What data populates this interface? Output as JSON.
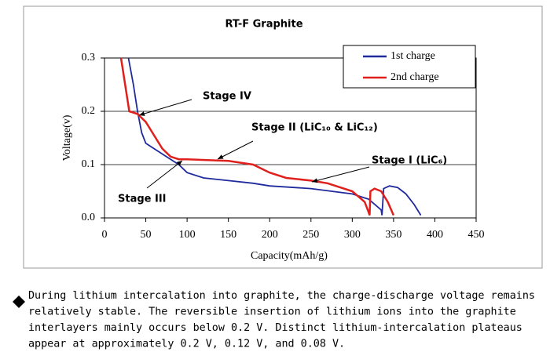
{
  "chart_data": {
    "type": "line",
    "title": "RT-F Graphite",
    "xlabel": "Capacity(mAh/g)",
    "ylabel": "Voltage(v)",
    "xlim": [
      0,
      450
    ],
    "xticks": [
      0,
      50,
      100,
      150,
      200,
      250,
      300,
      350,
      400,
      450
    ],
    "ylim": [
      0,
      0.3
    ],
    "yticks": [
      {
        "value": 0,
        "label": "0.0"
      },
      0.1,
      0.2,
      0.3
    ],
    "grid": true,
    "legend": "upper right",
    "series": [
      {
        "name": "1st charge",
        "color": "#1f2a9c",
        "x": [
          29,
          35,
          40,
          45,
          50,
          60,
          80,
          90,
          100,
          120,
          150,
          180,
          200,
          250,
          300,
          320,
          335,
          336,
          338,
          345,
          355,
          365,
          375,
          383
        ],
        "values": [
          0.3,
          0.25,
          0.2,
          0.16,
          0.14,
          0.13,
          0.11,
          0.1,
          0.085,
          0.075,
          0.07,
          0.065,
          0.06,
          0.055,
          0.045,
          0.035,
          0.015,
          0.005,
          0.055,
          0.06,
          0.057,
          0.045,
          0.025,
          0.005
        ]
      },
      {
        "name": "2nd charge",
        "color": "#e0201c",
        "x": [
          20,
          25,
          30,
          40,
          50,
          60,
          70,
          80,
          90,
          100,
          150,
          180,
          200,
          220,
          250,
          270,
          300,
          315,
          320,
          321,
          322,
          327,
          335,
          343,
          350
        ],
        "values": [
          0.3,
          0.25,
          0.2,
          0.195,
          0.18,
          0.155,
          0.13,
          0.115,
          0.11,
          0.11,
          0.107,
          0.1,
          0.085,
          0.075,
          0.07,
          0.065,
          0.05,
          0.03,
          0.01,
          0.005,
          0.05,
          0.055,
          0.05,
          0.03,
          0.005
        ]
      }
    ],
    "annotations": [
      "Stage IV",
      "Stage II (LiC₁₀ & LiC₁₂)",
      "Stage I (LiC₆)",
      "Stage III"
    ]
  },
  "caption": [
    "During lithium intercalation into graphite, the charge-discharge voltage remains",
    "relatively stable. The reversible insertion of lithium ions into the graphite",
    "interlayers mainly occurs below 0.2 V. Distinct lithium-intercalation plateaus",
    "appear at approximately 0.2 V, 0.12 V, and 0.08 V."
  ]
}
